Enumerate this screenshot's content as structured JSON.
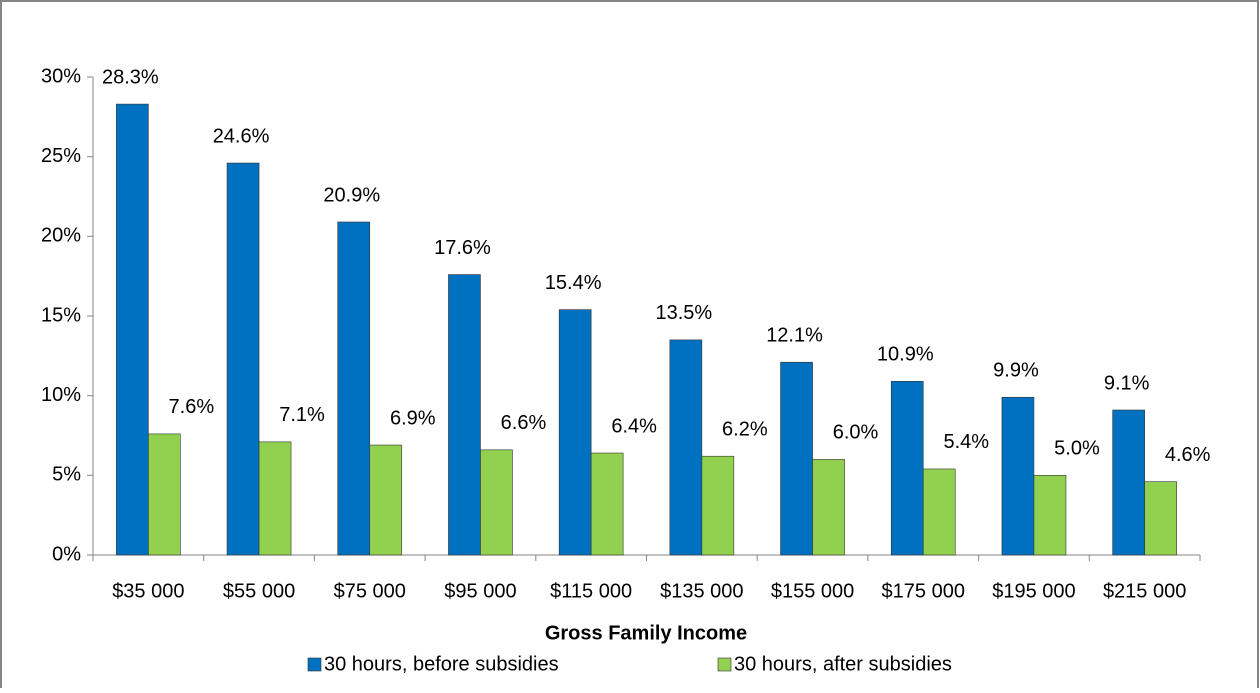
{
  "chart_data": {
    "type": "bar",
    "x_label": "Gross Family Income",
    "categories": [
      "$35 000",
      "$55 000",
      "$75 000",
      "$95 000",
      "$115 000",
      "$135 000",
      "$155 000",
      "$175 000",
      "$195 000",
      "$215 000"
    ],
    "series": [
      {
        "name": "30 hours, before subsidies",
        "color": "#0070c0",
        "values": [
          28.3,
          24.6,
          20.9,
          17.6,
          15.4,
          13.5,
          12.1,
          10.9,
          9.9,
          9.1
        ],
        "value_labels": [
          "28.3%",
          "24.6%",
          "20.9%",
          "17.6%",
          "15.4%",
          "13.5%",
          "12.1%",
          "10.9%",
          "9.9%",
          "9.1%"
        ]
      },
      {
        "name": "30 hours, after subsidies",
        "color": "#92d050",
        "values": [
          7.6,
          7.1,
          6.9,
          6.6,
          6.4,
          6.2,
          6.0,
          5.4,
          5.0,
          4.6
        ],
        "value_labels": [
          "7.6%",
          "7.1%",
          "6.9%",
          "6.6%",
          "6.4%",
          "6.2%",
          "6.0%",
          "5.4%",
          "5.0%",
          "4.6%"
        ]
      }
    ],
    "ylim": [
      0,
      30
    ],
    "yticks": [
      {
        "value": 0,
        "label": "0%"
      },
      {
        "value": 5,
        "label": "5%"
      },
      {
        "value": 10,
        "label": "10%"
      },
      {
        "value": 15,
        "label": "15%"
      },
      {
        "value": 20,
        "label": "20%"
      },
      {
        "value": 25,
        "label": "25%"
      },
      {
        "value": 30,
        "label": "30%"
      }
    ],
    "legend": "bottom"
  }
}
